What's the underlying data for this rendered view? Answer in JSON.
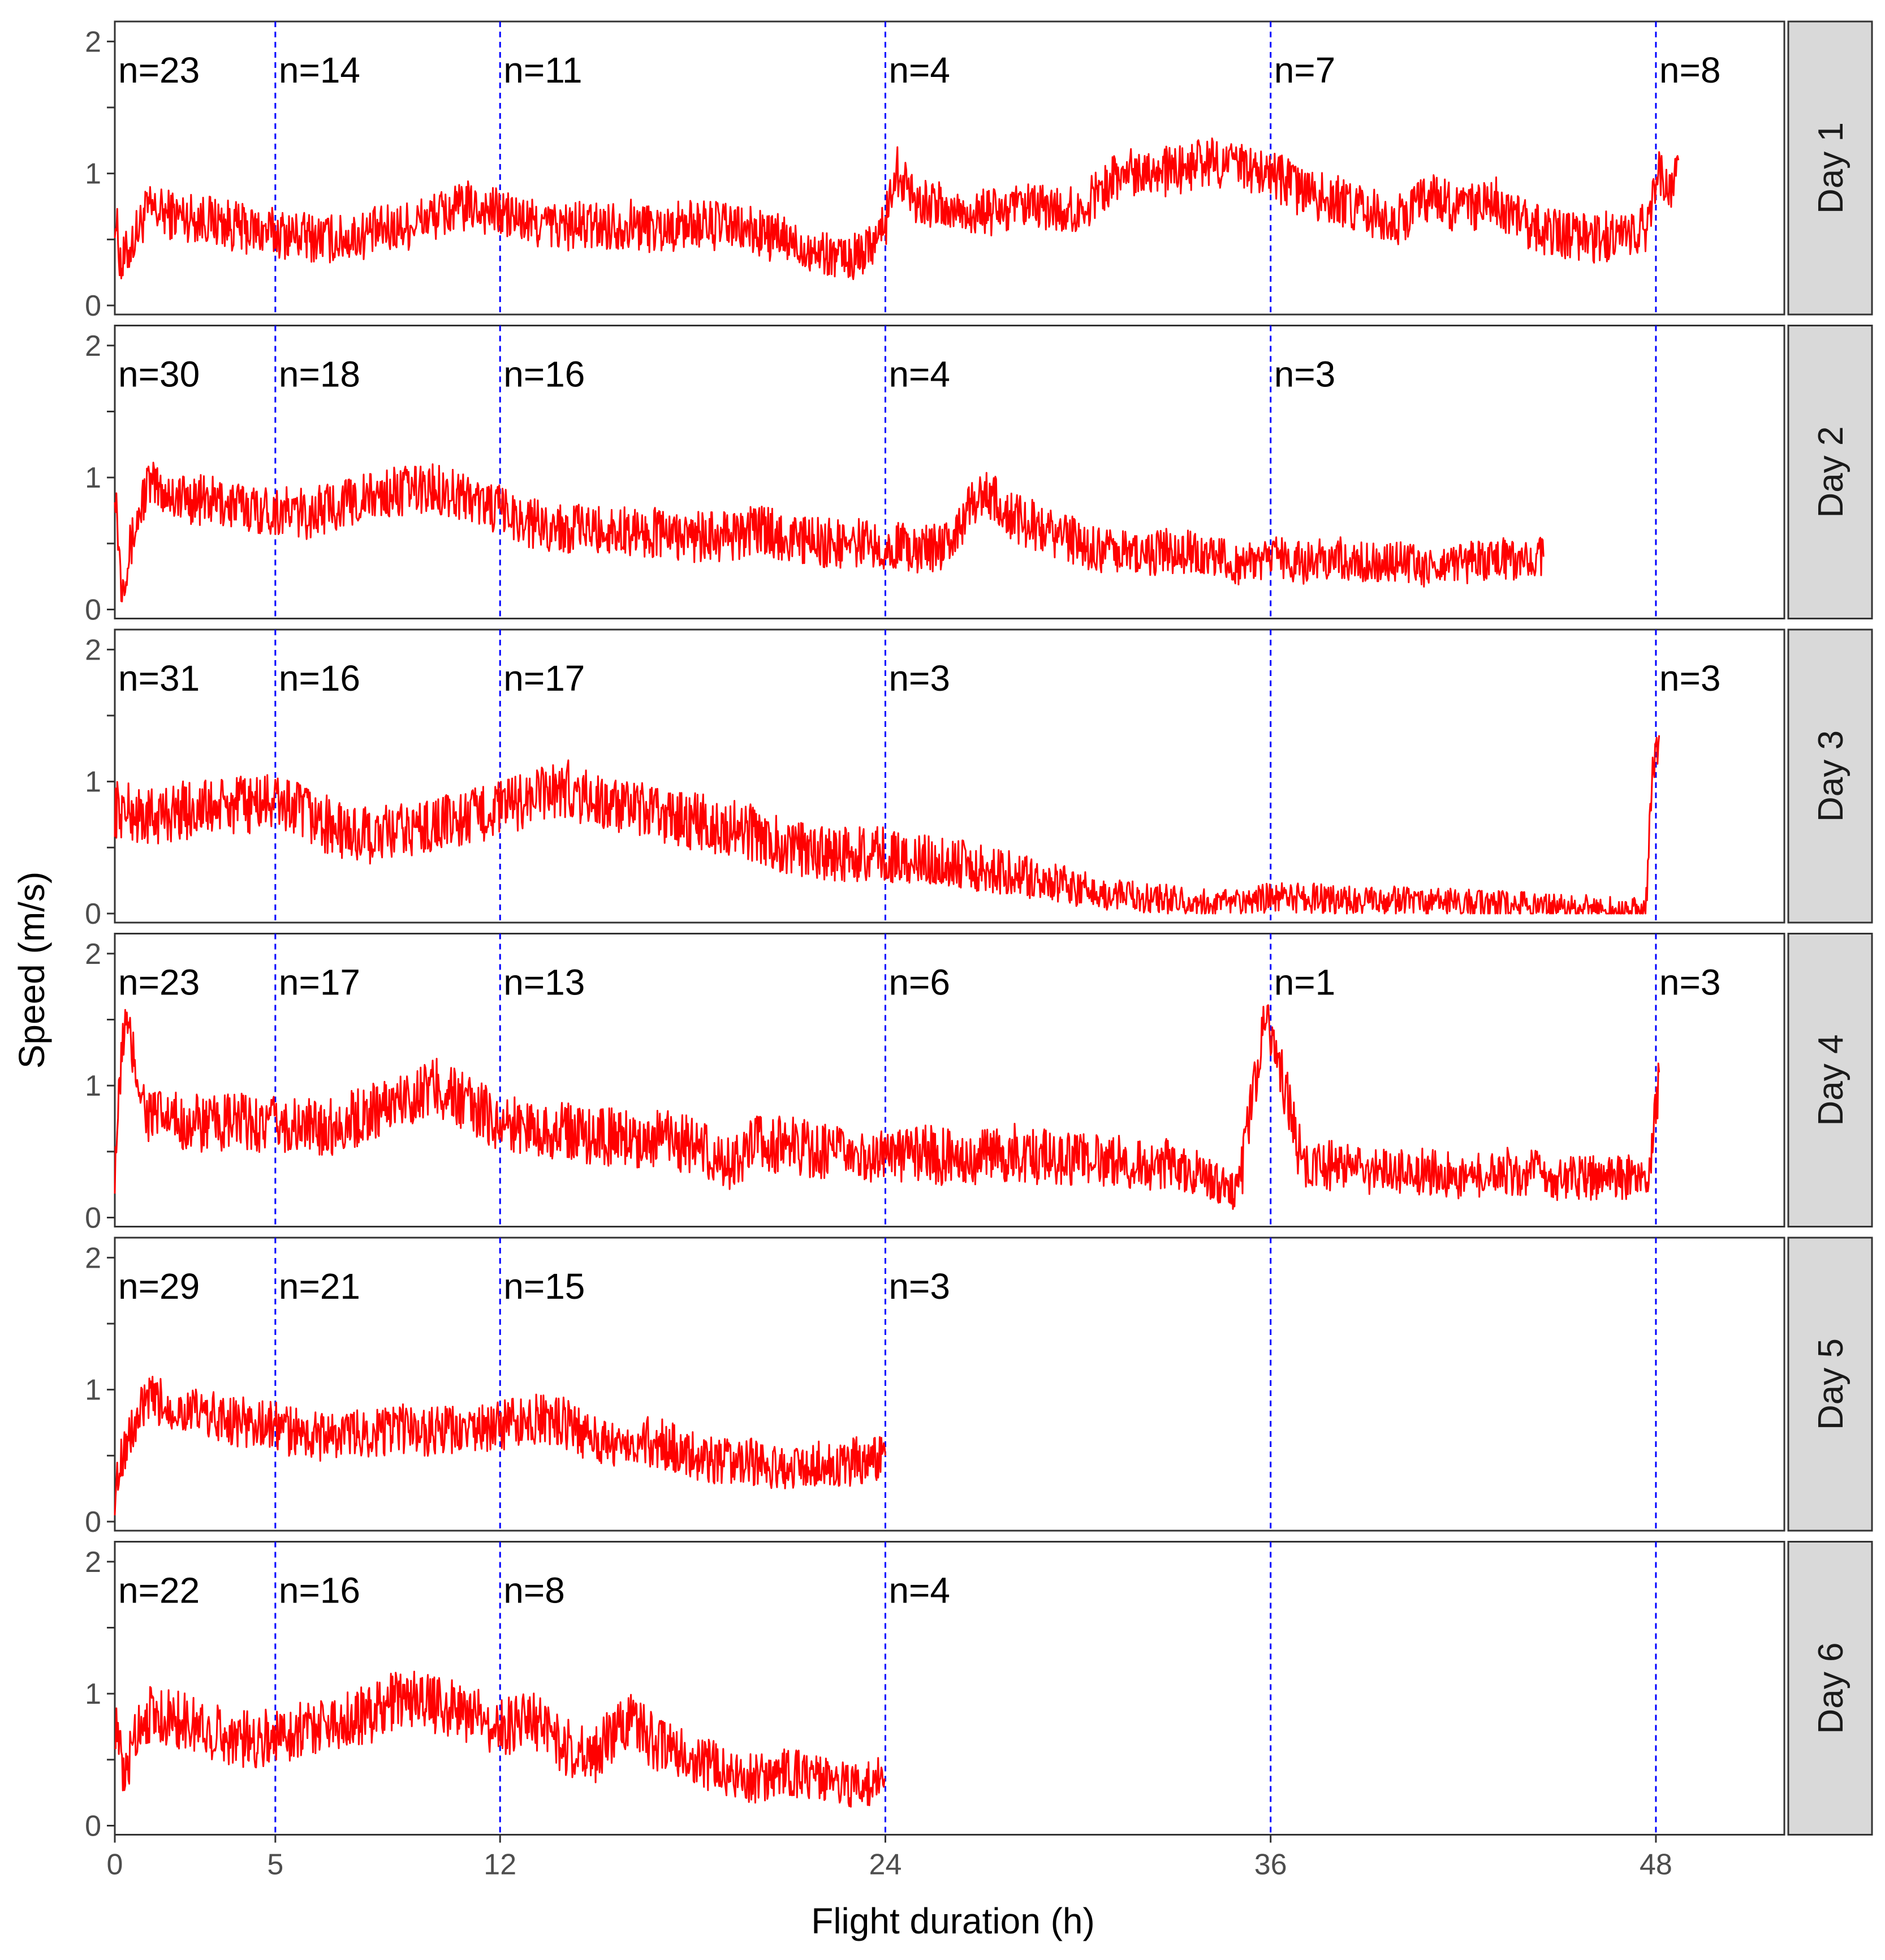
{
  "chart_data": {
    "type": "line",
    "title": "",
    "xlabel": "Flight duration (h)",
    "ylabel": "Speed (m/s)",
    "xlim": [
      0,
      52
    ],
    "ylim": [
      0,
      2.1
    ],
    "x_ticks": [
      0,
      5,
      12,
      24,
      36,
      48
    ],
    "x_tick_labels": [
      "0",
      "5",
      "12",
      "24",
      "36",
      "48"
    ],
    "y_ticks": [
      0,
      1,
      2
    ],
    "y_tick_labels": [
      "0",
      "1",
      "2"
    ],
    "reference_lines_x": [
      5,
      12,
      24,
      36,
      48
    ],
    "grid": false,
    "colors": {
      "line": "#ff0000",
      "reference": "#0000ff",
      "strip_background": "#d9d9d9",
      "panel_border": "#333333"
    },
    "panels": [
      {
        "label": "Day 1",
        "counts": [
          {
            "x": 0,
            "text": "n=23"
          },
          {
            "x": 5,
            "text": "n=14"
          },
          {
            "x": 12,
            "text": "n=11"
          },
          {
            "x": 24,
            "text": "n=4"
          },
          {
            "x": 36,
            "text": "n=7"
          },
          {
            "x": 48,
            "text": "n=8"
          }
        ],
        "series": [
          {
            "x": [
              0,
              0.2,
              1,
              2,
              3,
              4,
              5,
              6,
              7,
              8,
              9,
              10,
              11,
              12,
              13,
              14,
              15,
              16,
              17,
              18,
              19,
              20,
              21,
              22,
              23,
              24,
              24.3,
              25,
              26,
              27,
              28,
              29,
              30,
              31,
              32,
              33,
              34,
              35,
              36,
              37,
              38,
              39,
              40,
              41,
              42,
              43,
              44,
              45,
              46,
              47,
              47.8,
              48,
              48.5,
              48.7
            ],
            "y": [
              0.7,
              0.3,
              0.72,
              0.68,
              0.65,
              0.58,
              0.55,
              0.52,
              0.5,
              0.55,
              0.6,
              0.68,
              0.75,
              0.7,
              0.62,
              0.6,
              0.6,
              0.62,
              0.58,
              0.62,
              0.6,
              0.55,
              0.48,
              0.4,
              0.35,
              0.6,
              1.05,
              0.8,
              0.72,
              0.7,
              0.72,
              0.74,
              0.7,
              0.95,
              1.05,
              1.0,
              1.1,
              1.05,
              1.0,
              0.85,
              0.8,
              0.7,
              0.65,
              0.85,
              0.7,
              0.8,
              0.6,
              0.55,
              0.5,
              0.55,
              0.6,
              1.0,
              0.9,
              1.1
            ],
            "noise": 0.12
          }
        ]
      },
      {
        "label": "Day 2",
        "counts": [
          {
            "x": 0,
            "text": "n=30"
          },
          {
            "x": 5,
            "text": "n=18"
          },
          {
            "x": 12,
            "text": "n=16"
          },
          {
            "x": 24,
            "text": "n=4"
          },
          {
            "x": 36,
            "text": "n=3"
          }
        ],
        "series": [
          {
            "x": [
              0,
              0.2,
              1,
              2,
              3,
              4,
              5,
              6,
              7,
              8,
              9,
              10,
              11,
              12,
              13,
              14,
              15,
              16,
              17,
              18,
              19,
              20,
              21,
              22,
              23,
              24,
              25,
              26,
              27,
              28,
              29,
              30,
              31,
              32,
              33,
              34,
              35,
              36,
              37,
              38,
              39,
              40,
              41,
              42,
              43,
              44,
              44.5
            ],
            "y": [
              1.0,
              0.2,
              0.95,
              0.85,
              0.82,
              0.78,
              0.75,
              0.72,
              0.8,
              0.85,
              0.9,
              0.92,
              0.85,
              0.75,
              0.65,
              0.62,
              0.6,
              0.6,
              0.58,
              0.55,
              0.55,
              0.6,
              0.55,
              0.5,
              0.5,
              0.5,
              0.45,
              0.5,
              0.9,
              0.7,
              0.6,
              0.5,
              0.45,
              0.4,
              0.45,
              0.4,
              0.35,
              0.4,
              0.35,
              0.4,
              0.35,
              0.38,
              0.3,
              0.35,
              0.4,
              0.35,
              0.4
            ],
            "noise": 0.12
          }
        ]
      },
      {
        "label": "Day 3",
        "counts": [
          {
            "x": 0,
            "text": "n=31"
          },
          {
            "x": 5,
            "text": "n=16"
          },
          {
            "x": 12,
            "text": "n=17"
          },
          {
            "x": 24,
            "text": "n=3"
          },
          {
            "x": 48,
            "text": "n=3"
          }
        ],
        "series": [
          {
            "x": [
              0,
              1,
              2,
              3,
              4,
              5,
              6,
              7,
              8,
              9,
              10,
              11,
              12,
              13,
              14,
              15,
              16,
              17,
              18,
              19,
              20,
              21,
              22,
              23,
              24,
              25,
              26,
              27,
              28,
              29,
              30,
              31,
              32,
              33,
              34,
              35,
              36,
              40,
              44,
              47.7,
              47.9,
              48.1
            ],
            "y": [
              0.8,
              0.72,
              0.78,
              0.8,
              0.82,
              0.85,
              0.75,
              0.62,
              0.58,
              0.62,
              0.68,
              0.72,
              0.8,
              0.88,
              0.95,
              0.85,
              0.78,
              0.75,
              0.7,
              0.65,
              0.6,
              0.5,
              0.45,
              0.45,
              0.45,
              0.4,
              0.4,
              0.35,
              0.3,
              0.25,
              0.2,
              0.15,
              0.12,
              0.1,
              0.08,
              0.08,
              0.12,
              0.1,
              0.06,
              0.03,
              1.2,
              1.35
            ],
            "noise": 0.14
          }
        ]
      },
      {
        "label": "Day 4",
        "counts": [
          {
            "x": 0,
            "text": "n=23"
          },
          {
            "x": 5,
            "text": "n=17"
          },
          {
            "x": 12,
            "text": "n=13"
          },
          {
            "x": 24,
            "text": "n=6"
          },
          {
            "x": 36,
            "text": "n=1"
          },
          {
            "x": 48,
            "text": "n=3"
          }
        ],
        "series": [
          {
            "x": [
              0,
              0.3,
              1,
              2,
              3,
              4,
              5,
              6,
              7,
              8,
              9,
              10,
              11,
              12,
              13,
              14,
              15,
              16,
              17,
              18,
              19,
              20,
              21,
              22,
              23,
              24,
              25,
              26,
              27,
              28,
              29,
              30,
              31,
              32,
              33,
              34,
              35,
              35.8,
              36.3,
              37,
              38,
              39,
              40,
              41,
              42,
              43,
              44,
              45,
              46,
              47,
              47.8,
              48.1
            ],
            "y": [
              0.4,
              1.5,
              0.78,
              0.72,
              0.7,
              0.72,
              0.7,
              0.68,
              0.7,
              0.8,
              0.9,
              1.0,
              0.85,
              0.72,
              0.68,
              0.65,
              0.62,
              0.6,
              0.6,
              0.55,
              0.4,
              0.55,
              0.55,
              0.5,
              0.45,
              0.45,
              0.5,
              0.45,
              0.45,
              0.5,
              0.45,
              0.45,
              0.45,
              0.4,
              0.4,
              0.3,
              0.2,
              1.5,
              1.1,
              0.4,
              0.4,
              0.35,
              0.35,
              0.35,
              0.3,
              0.35,
              0.35,
              0.3,
              0.3,
              0.3,
              0.35,
              1.1
            ],
            "noise": 0.14
          }
        ]
      },
      {
        "label": "Day 5",
        "counts": [
          {
            "x": 0,
            "text": "n=29"
          },
          {
            "x": 5,
            "text": "n=21"
          },
          {
            "x": 12,
            "text": "n=15"
          },
          {
            "x": 24,
            "text": "n=3"
          }
        ],
        "series": [
          {
            "x": [
              0,
              0.2,
              1,
              2,
              3,
              4,
              5,
              6,
              7,
              8,
              9,
              10,
              11,
              12,
              13,
              14,
              15,
              16,
              17,
              18,
              19,
              20,
              21,
              22,
              23,
              24
            ],
            "y": [
              0.2,
              0.5,
              0.92,
              0.85,
              0.8,
              0.75,
              0.72,
              0.65,
              0.65,
              0.68,
              0.7,
              0.68,
              0.68,
              0.72,
              0.78,
              0.75,
              0.6,
              0.62,
              0.6,
              0.5,
              0.45,
              0.45,
              0.4,
              0.45,
              0.45,
              0.5
            ],
            "noise": 0.12
          }
        ]
      },
      {
        "label": "Day 6",
        "counts": [
          {
            "x": 0,
            "text": "n=22"
          },
          {
            "x": 5,
            "text": "n=16"
          },
          {
            "x": 12,
            "text": "n=8"
          },
          {
            "x": 24,
            "text": "n=4"
          }
        ],
        "series": [
          {
            "x": [
              0,
              0.3,
              0.6,
              1,
              2,
              3,
              4,
              5,
              6,
              7,
              8,
              9,
              10,
              11,
              12,
              13,
              14,
              15,
              16,
              17,
              18,
              19,
              20,
              21,
              22,
              23,
              24
            ],
            "y": [
              0.8,
              0.3,
              0.7,
              0.85,
              0.8,
              0.72,
              0.65,
              0.68,
              0.75,
              0.8,
              0.85,
              0.98,
              0.92,
              0.85,
              0.75,
              0.8,
              0.6,
              0.55,
              0.8,
              0.6,
              0.5,
              0.4,
              0.35,
              0.4,
              0.35,
              0.3,
              0.35
            ],
            "noise": 0.14
          }
        ]
      }
    ]
  }
}
